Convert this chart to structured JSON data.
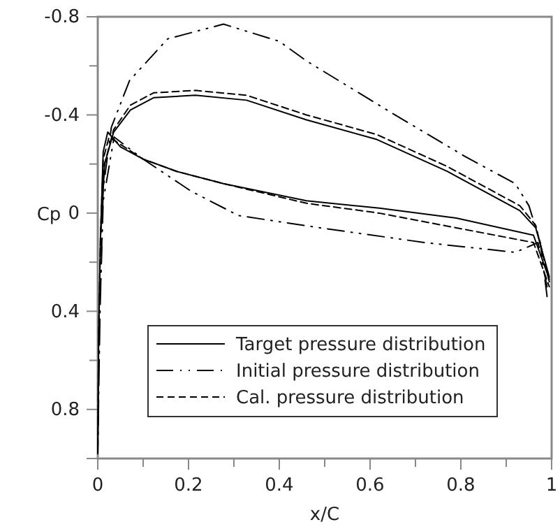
{
  "chart_data": {
    "type": "line",
    "xlabel": "x/C",
    "ylabel": "Cp",
    "xlim": [
      0,
      1
    ],
    "ylim": [
      1.0,
      -0.8
    ],
    "xticks": [
      0,
      {
        "value": 0.1,
        "label": null
      },
      0.2,
      {
        "value": 0.3,
        "label": null
      },
      0.4,
      {
        "value": 0.5,
        "label": null
      },
      0.6,
      {
        "value": 0.7,
        "label": null
      },
      0.8,
      {
        "value": 0.9,
        "label": null
      },
      1
    ],
    "yticks": [
      -0.8,
      {
        "value": -0.6,
        "label": null
      },
      -0.4,
      {
        "value": -0.2,
        "label": null
      },
      0,
      {
        "value": 0.2,
        "label": null
      },
      0.4,
      {
        "value": 0.6,
        "label": null
      },
      0.8
    ],
    "grid": false,
    "legend": "bottom right",
    "marker": "none",
    "series": [
      {
        "name": "Target pressure distribution",
        "color": "#000000",
        "line_style": "solid",
        "x": [
          0.995,
          0.965,
          0.93,
          0.77,
          0.615,
          0.46,
          0.328,
          0.215,
          0.123,
          0.072,
          0.035,
          0.015,
          0.006,
          0.002,
          0,
          0.002,
          0.006,
          0.012,
          0.022,
          0.05,
          0.1,
          0.174,
          0.277,
          0.46,
          0.62,
          0.79,
          0.96,
          0.995
        ],
        "values": [
          0.26,
          0.06,
          -0.01,
          -0.17,
          -0.3,
          -0.38,
          -0.46,
          -0.48,
          -0.47,
          -0.42,
          -0.33,
          -0.2,
          0.1,
          0.5,
          0.98,
          0.5,
          0.1,
          -0.25,
          -0.33,
          -0.27,
          -0.22,
          -0.17,
          -0.12,
          -0.05,
          -0.02,
          0.02,
          0.09,
          0.27
        ]
      },
      {
        "name": "Initial pressure distribution",
        "color": "#000000",
        "line_style": "dashdot",
        "x": [
          0.99,
          0.975,
          0.95,
          0.92,
          0.81,
          0.646,
          0.46,
          0.4,
          0.277,
          0.154,
          0.07,
          0.03,
          0.012,
          0.005,
          0,
          0.005,
          0.012,
          0.036,
          0.1,
          0.205,
          0.31,
          0.49,
          0.72,
          0.92,
          0.97,
          0.99
        ],
        "values": [
          0.34,
          0.12,
          -0.03,
          -0.12,
          -0.23,
          -0.41,
          -0.62,
          -0.7,
          -0.77,
          -0.71,
          -0.54,
          -0.35,
          -0.1,
          0.4,
          0.98,
          0.4,
          -0.05,
          -0.31,
          -0.22,
          -0.09,
          0.01,
          0.06,
          0.12,
          0.16,
          0.12,
          0.3
        ]
      },
      {
        "name": "Cal. pressure distribution",
        "color": "#000000",
        "line_style": "dashed",
        "x": [
          0.995,
          0.965,
          0.93,
          0.77,
          0.615,
          0.46,
          0.328,
          0.215,
          0.123,
          0.072,
          0.035,
          0.015,
          0.006,
          0.002,
          0,
          0.002,
          0.006,
          0.012,
          0.025,
          0.05,
          0.1,
          0.174,
          0.277,
          0.46,
          0.62,
          0.79,
          0.96,
          0.995
        ],
        "values": [
          0.28,
          0.05,
          -0.03,
          -0.19,
          -0.32,
          -0.4,
          -0.48,
          -0.5,
          -0.49,
          -0.44,
          -0.34,
          -0.2,
          0.1,
          0.5,
          0.98,
          0.5,
          0.1,
          -0.22,
          -0.31,
          -0.28,
          -0.22,
          -0.17,
          -0.12,
          -0.04,
          0.0,
          0.06,
          0.12,
          0.3
        ]
      }
    ]
  }
}
